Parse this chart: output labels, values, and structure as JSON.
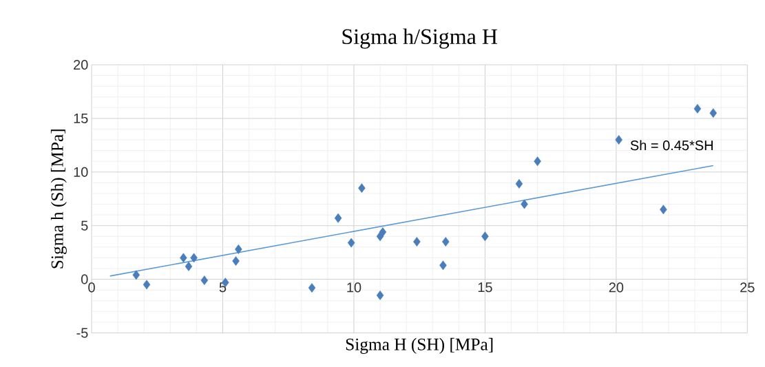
{
  "chart_data": {
    "type": "scatter",
    "title": "Sigma h/Sigma H",
    "xlabel": "Sigma H (SH) [MPa]",
    "ylabel": "Sigma h (Sh) [MPa]",
    "xlim": [
      0,
      25
    ],
    "ylim": [
      -5,
      20
    ],
    "xticks": [
      0,
      5,
      10,
      15,
      20,
      25
    ],
    "yticks": [
      -5,
      0,
      5,
      10,
      15,
      20
    ],
    "grid": true,
    "marker": "diamond",
    "series": [
      {
        "color": "#4a7ebb",
        "x": [
          1.7,
          2.1,
          3.5,
          3.7,
          3.9,
          4.3,
          5.1,
          5.5,
          5.6,
          8.4,
          9.4,
          9.9,
          10.3,
          11.0,
          11.1,
          11.0,
          12.4,
          13.4,
          13.5,
          15.0,
          16.3,
          16.5,
          17.0,
          20.1,
          21.8,
          23.1,
          23.7
        ],
        "values": [
          0.4,
          -0.5,
          2.0,
          1.2,
          2.0,
          -0.1,
          -0.3,
          1.7,
          2.8,
          -0.8,
          5.7,
          3.4,
          8.5,
          4.0,
          4.4,
          -1.5,
          3.5,
          1.3,
          3.5,
          4.0,
          8.9,
          7.0,
          11.0,
          13.0,
          6.5,
          15.9,
          15.5
        ]
      },
      {
        "type": "line",
        "marker": "none",
        "color": "#5b9bd5",
        "x": [
          0.7,
          23.7
        ],
        "values": [
          0.3,
          10.6
        ]
      }
    ],
    "annotations": [
      "Sh = 0.45*SH"
    ]
  }
}
